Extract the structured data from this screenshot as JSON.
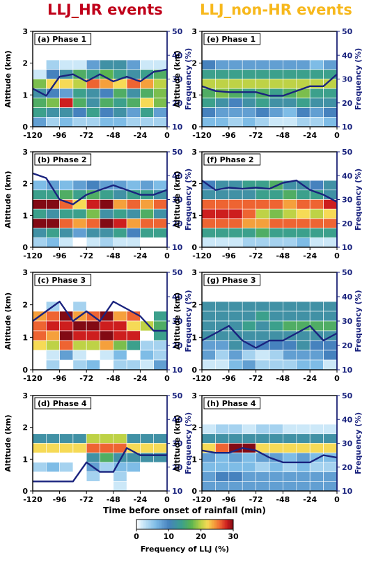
{
  "titles": {
    "left": "LLJ_HR events",
    "right": "LLJ_non-HR events"
  },
  "x_axis_label": "Time before onset of rainfall (min)",
  "y_left_label": "Altitude (km)",
  "y_right_label": "Frequency (%)",
  "x_ticks": [
    "-120",
    "-96",
    "-72",
    "-48",
    "-24",
    "0"
  ],
  "y_left_ticks": [
    "0",
    "1",
    "2",
    "3"
  ],
  "y_right_ticks": [
    "10",
    "20",
    "30",
    "40",
    "50"
  ],
  "colorbar": {
    "label": "Frequency of LLJ (%)",
    "ticks": [
      "0",
      "10",
      "20",
      "30"
    ],
    "range": [
      0,
      30
    ]
  },
  "colors": {
    "line": "#1a237e",
    "left_title": "#c0001a",
    "right_title": "#f7b81c"
  },
  "chart_data": [
    {
      "type": "heatmap",
      "panel": "(a) Phase 1",
      "x": [
        -120,
        -108,
        -96,
        -84,
        -72,
        -60,
        -48,
        -36,
        -24,
        -12,
        0
      ],
      "ylim_left": [
        0,
        3
      ],
      "ylim_right": [
        10,
        50
      ],
      "xlim": [
        -120,
        0
      ],
      "cell_height_km": 0.3,
      "cells": [
        [
          0,
          4,
          2,
          2,
          8,
          12,
          12,
          8,
          2,
          2
        ],
        [
          2,
          10,
          12,
          16,
          14,
          17,
          14,
          12,
          14,
          16
        ],
        [
          18,
          22,
          22,
          20,
          26,
          24,
          22,
          26,
          24,
          20
        ],
        [
          12,
          10,
          8,
          14,
          12,
          10,
          16,
          12,
          16,
          18
        ],
        [
          16,
          18,
          28,
          16,
          12,
          16,
          14,
          16,
          22,
          18
        ],
        [
          14,
          12,
          12,
          10,
          14,
          10,
          12,
          8,
          14,
          8
        ],
        [
          8,
          4,
          6,
          4,
          4,
          6,
          6,
          4,
          4,
          4
        ]
      ],
      "line": [
        26,
        23,
        31,
        32,
        29,
        32,
        29,
        31,
        29,
        33,
        34
      ]
    },
    {
      "type": "heatmap",
      "panel": "(e) Phase 1",
      "x": [
        -120,
        -108,
        -96,
        -84,
        -72,
        -60,
        -48,
        -36,
        -24,
        -12,
        0
      ],
      "ylim_left": [
        0,
        3
      ],
      "ylim_right": [
        10,
        50
      ],
      "xlim": [
        -120,
        0
      ],
      "cell_height_km": 0.3,
      "cells": [
        [
          10,
          8,
          8,
          8,
          8,
          8,
          8,
          8,
          6,
          8
        ],
        [
          14,
          14,
          14,
          14,
          14,
          14,
          14,
          14,
          14,
          14
        ],
        [
          20,
          20,
          20,
          20,
          20,
          20,
          20,
          20,
          20,
          20
        ],
        [
          16,
          18,
          16,
          14,
          16,
          14,
          16,
          18,
          14,
          14
        ],
        [
          14,
          12,
          10,
          12,
          14,
          12,
          12,
          14,
          12,
          12
        ],
        [
          10,
          8,
          8,
          8,
          10,
          8,
          6,
          10,
          8,
          10
        ],
        [
          6,
          6,
          4,
          6,
          4,
          2,
          2,
          4,
          4,
          6
        ]
      ],
      "line": [
        27,
        25,
        24.5,
        24.5,
        24.5,
        23,
        23,
        25,
        27,
        27,
        32
      ]
    },
    {
      "type": "heatmap",
      "panel": "(b) Phase 2",
      "x": [
        -120,
        -108,
        -96,
        -84,
        -72,
        -60,
        -48,
        -36,
        -24,
        -12,
        0
      ],
      "ylim_left": [
        0,
        3
      ],
      "ylim_right": [
        10,
        50
      ],
      "xlim": [
        -120,
        0
      ],
      "cell_height_km": 0.3,
      "cells": [
        [
          6,
          8,
          6,
          8,
          10,
          8,
          8,
          6,
          8,
          6
        ],
        [
          14,
          14,
          16,
          14,
          16,
          14,
          12,
          14,
          14,
          12
        ],
        [
          30,
          30,
          26,
          22,
          28,
          30,
          24,
          26,
          24,
          26
        ],
        [
          14,
          12,
          14,
          14,
          18,
          12,
          14,
          12,
          16,
          12
        ],
        [
          30,
          30,
          26,
          24,
          26,
          30,
          28,
          24,
          26,
          26
        ],
        [
          12,
          14,
          12,
          8,
          12,
          12,
          14,
          10,
          14,
          14
        ],
        [
          4,
          6,
          2,
          0,
          2,
          4,
          2,
          2,
          0,
          0
        ]
      ],
      "line": [
        41,
        39,
        30,
        28,
        32,
        34,
        36,
        34,
        32,
        32,
        34
      ]
    },
    {
      "type": "heatmap",
      "panel": "(f) Phase 2",
      "x": [
        -120,
        -108,
        -96,
        -84,
        -72,
        -60,
        -48,
        -36,
        -24,
        -12,
        0
      ],
      "ylim_left": [
        0,
        3
      ],
      "ylim_right": [
        10,
        50
      ],
      "xlim": [
        -120,
        0
      ],
      "cell_height_km": 0.3,
      "cells": [
        [
          10,
          12,
          12,
          14,
          14,
          16,
          12,
          12,
          10,
          12
        ],
        [
          12,
          12,
          12,
          12,
          14,
          14,
          16,
          14,
          14,
          12
        ],
        [
          26,
          26,
          26,
          26,
          26,
          26,
          24,
          26,
          26,
          28
        ],
        [
          28,
          28,
          28,
          26,
          20,
          18,
          20,
          22,
          20,
          22
        ],
        [
          26,
          26,
          26,
          24,
          24,
          26,
          26,
          26,
          26,
          26
        ],
        [
          14,
          14,
          14,
          14,
          16,
          14,
          14,
          14,
          14,
          14
        ],
        [
          2,
          2,
          2,
          4,
          4,
          4,
          4,
          6,
          2,
          2
        ]
      ],
      "line": [
        38,
        34,
        35,
        34.5,
        35,
        34.5,
        37,
        38,
        34,
        32,
        29
      ]
    },
    {
      "type": "heatmap",
      "panel": "(c) Phase 3",
      "x": [
        -120,
        -108,
        -96,
        -84,
        -72,
        -60,
        -48,
        -36,
        -24,
        -12,
        0
      ],
      "ylim_left": [
        0,
        3
      ],
      "ylim_right": [
        10,
        50
      ],
      "xlim": [
        -120,
        0
      ],
      "cell_height_km": 0.3,
      "cells": [
        [
          0,
          4,
          0,
          4,
          0,
          0,
          0,
          0,
          0,
          0
        ],
        [
          24,
          26,
          30,
          24,
          26,
          30,
          24,
          26,
          0,
          14
        ],
        [
          26,
          28,
          28,
          30,
          30,
          28,
          28,
          22,
          20,
          16
        ],
        [
          26,
          24,
          30,
          28,
          28,
          30,
          28,
          28,
          0,
          14
        ],
        [
          22,
          20,
          26,
          20,
          20,
          24,
          18,
          14,
          4,
          4
        ],
        [
          0,
          2,
          8,
          2,
          0,
          2,
          6,
          0,
          6,
          4
        ],
        [
          0,
          4,
          0,
          4,
          6,
          0,
          4,
          4,
          2,
          8
        ]
      ],
      "line": [
        30,
        34,
        38,
        30,
        34,
        30,
        38,
        35,
        32,
        26,
        26
      ]
    },
    {
      "type": "heatmap",
      "panel": "(g) Phase 3",
      "x": [
        -120,
        -108,
        -96,
        -84,
        -72,
        -60,
        -48,
        -36,
        -24,
        -12,
        0
      ],
      "ylim_left": [
        0,
        3
      ],
      "ylim_right": [
        10,
        50
      ],
      "xlim": [
        -120,
        0
      ],
      "cell_height_km": 0.3,
      "cells": [
        [
          12,
          12,
          12,
          12,
          12,
          12,
          12,
          12,
          12,
          12
        ],
        [
          12,
          12,
          12,
          12,
          14,
          12,
          12,
          12,
          12,
          12
        ],
        [
          12,
          12,
          12,
          14,
          12,
          14,
          16,
          16,
          16,
          16
        ],
        [
          12,
          12,
          12,
          12,
          12,
          12,
          12,
          12,
          12,
          12
        ],
        [
          8,
          8,
          12,
          10,
          10,
          10,
          10,
          12,
          10,
          10
        ],
        [
          8,
          4,
          8,
          4,
          2,
          4,
          8,
          8,
          8,
          10
        ],
        [
          2,
          2,
          6,
          8,
          4,
          4,
          4,
          6,
          6,
          2
        ]
      ],
      "line": [
        22,
        25,
        28,
        22,
        19,
        22,
        22,
        25,
        28,
        22,
        25
      ]
    },
    {
      "type": "heatmap",
      "panel": "(d) Phase 4",
      "x": [
        -120,
        -108,
        -96,
        -84,
        -72,
        -60,
        -48,
        -36,
        -24,
        -12,
        0
      ],
      "ylim_left": [
        0,
        3
      ],
      "ylim_right": [
        10,
        50
      ],
      "xlim": [
        -120,
        0
      ],
      "cell_height_km": 0.3,
      "cells": [
        [
          0,
          0,
          0,
          0,
          0,
          0,
          0,
          0,
          0,
          0
        ],
        [
          12,
          12,
          12,
          12,
          20,
          20,
          20,
          12,
          12,
          12
        ],
        [
          22,
          22,
          22,
          22,
          26,
          26,
          26,
          22,
          22,
          22
        ],
        [
          0,
          0,
          0,
          0,
          12,
          16,
          12,
          12,
          12,
          12
        ],
        [
          4,
          6,
          4,
          0,
          8,
          4,
          6,
          6,
          0,
          0
        ],
        [
          0,
          0,
          0,
          0,
          4,
          0,
          4,
          0,
          0,
          0
        ],
        [
          0,
          0,
          0,
          0,
          0,
          0,
          2,
          0,
          0,
          0
        ]
      ],
      "line": [
        14,
        14,
        14,
        14,
        22,
        18,
        18,
        28,
        25,
        25,
        25
      ]
    },
    {
      "type": "heatmap",
      "panel": "(h) Phase 4",
      "x": [
        -120,
        -108,
        -96,
        -84,
        -72,
        -60,
        -48,
        -36,
        -24,
        -12,
        0
      ],
      "ylim_left": [
        0,
        3
      ],
      "ylim_right": [
        10,
        50
      ],
      "xlim": [
        -120,
        0
      ],
      "cell_height_km": 0.3,
      "cells": [
        [
          2,
          4,
          4,
          2,
          4,
          4,
          2,
          2,
          2,
          2
        ],
        [
          12,
          12,
          12,
          12,
          12,
          12,
          12,
          12,
          12,
          12
        ],
        [
          22,
          26,
          30,
          30,
          22,
          22,
          22,
          22,
          22,
          22
        ],
        [
          8,
          6,
          8,
          6,
          8,
          8,
          6,
          8,
          6,
          6
        ],
        [
          6,
          6,
          6,
          6,
          4,
          6,
          4,
          6,
          4,
          4
        ],
        [
          8,
          10,
          10,
          8,
          8,
          8,
          8,
          8,
          8,
          8
        ],
        [
          8,
          8,
          8,
          8,
          8,
          8,
          8,
          8,
          8,
          8
        ]
      ],
      "line": [
        27,
        26,
        26,
        28,
        27,
        24,
        22,
        22,
        22,
        25,
        24
      ]
    }
  ]
}
